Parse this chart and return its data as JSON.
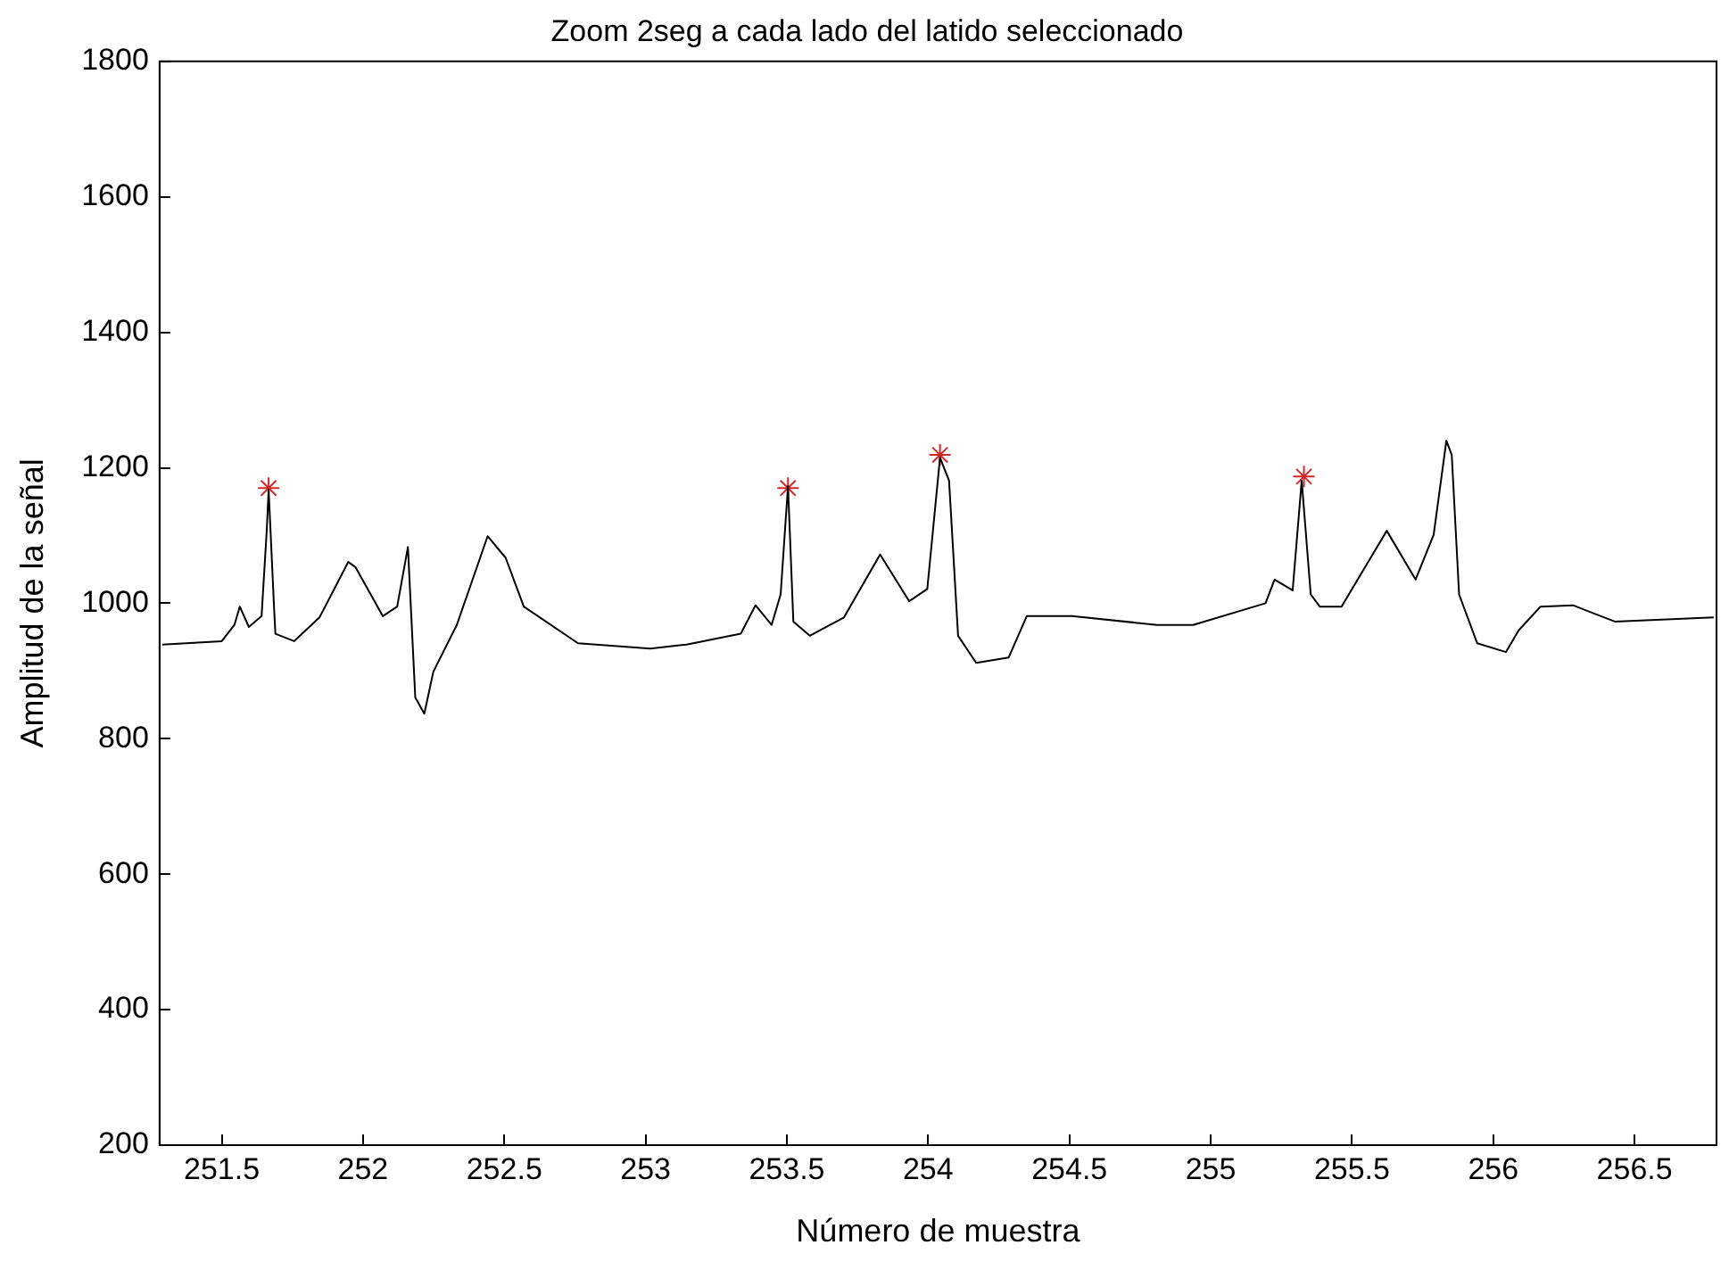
{
  "chart_data": {
    "type": "line",
    "title": "Zoom 2seg a cada lado del latido seleccionado",
    "xlabel": "Número de muestra",
    "ylabel": "Amplitud de la señal",
    "xlim": [
      251.28,
      256.79
    ],
    "xticks": [
      251.5,
      252,
      252.5,
      253,
      253.5,
      254,
      254.5,
      255,
      255.5,
      256,
      256.5
    ],
    "ylim": [
      200,
      1800
    ],
    "yticks": [
      200,
      400,
      600,
      800,
      1000,
      1200,
      1400,
      1600,
      1800
    ],
    "grid": false,
    "legend": false,
    "series": [
      {
        "color": "#000000",
        "marker": "none",
        "x": [
          251.29,
          251.5,
          251.545,
          251.564,
          251.596,
          251.641,
          251.66,
          251.666,
          251.686,
          251.69,
          251.756,
          251.846,
          251.948,
          251.974,
          252.07,
          252.121,
          252.159,
          252.185,
          252.217,
          252.249,
          252.332,
          252.441,
          252.505,
          252.569,
          252.761,
          253.017,
          253.145,
          253.337,
          253.389,
          253.446,
          253.478,
          253.504,
          253.523,
          253.581,
          253.702,
          253.83,
          253.933,
          253.997,
          254.042,
          254.074,
          254.106,
          254.17,
          254.285,
          254.349,
          254.509,
          254.81,
          254.938,
          255.194,
          255.226,
          255.29,
          255.322,
          255.354,
          255.386,
          255.463,
          255.623,
          255.725,
          255.789,
          255.834,
          255.853,
          255.879,
          255.943,
          256.045,
          256.09,
          256.167,
          256.282,
          256.43,
          256.78
        ],
        "values": [
          939,
          944,
          968,
          995,
          965,
          981,
          1112,
          1168,
          987,
          955,
          944,
          979,
          1061,
          1053,
          981,
          995,
          1083,
          861,
          837,
          899,
          968,
          1099,
          1067,
          995,
          941,
          933,
          939,
          955,
          997,
          968,
          1013,
          1173,
          973,
          952,
          979,
          1072,
          1003,
          1021,
          1215,
          1181,
          952,
          912,
          920,
          981,
          981,
          968,
          968,
          1000,
          1035,
          1019,
          1181,
          1013,
          995,
          995,
          1107,
          1035,
          1101,
          1240,
          1219,
          1013,
          941,
          928,
          960,
          995,
          997,
          973,
          979
        ]
      },
      {
        "type": "scatter",
        "color": "#d62728",
        "marker": "cross",
        "x": [
          251.666,
          253.504,
          254.042,
          255.33
        ],
        "values": [
          1170,
          1170,
          1219,
          1187
        ]
      }
    ]
  }
}
